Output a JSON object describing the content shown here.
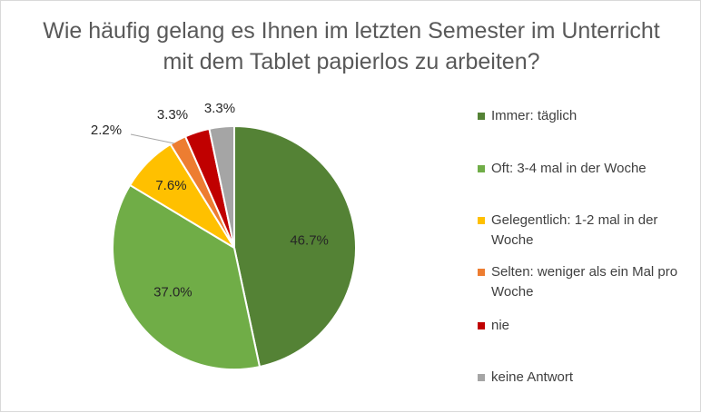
{
  "chart_data": {
    "type": "pie",
    "title": "Wie häufig gelang es Ihnen im letzten Semester im Unterricht mit dem Tablet papierlos zu arbeiten?",
    "categories": [
      "Immer: täglich",
      "Oft: 3-4 mal in der Woche",
      "Gelegentlich: 1-2 mal in der Woche",
      "Selten: weniger als ein Mal pro Woche",
      "nie",
      "keine Antwort"
    ],
    "values": [
      46.7,
      37.0,
      7.6,
      2.2,
      3.3,
      3.3
    ],
    "data_labels": [
      "46.7%",
      "37.0%",
      "7.6%",
      "2.2%",
      "3.3%",
      "3.3%"
    ],
    "colors": [
      "#548235",
      "#70ad47",
      "#ffc000",
      "#ed7d31",
      "#c00000",
      "#a5a5a5"
    ],
    "unit": "%",
    "legend_position": "right"
  }
}
